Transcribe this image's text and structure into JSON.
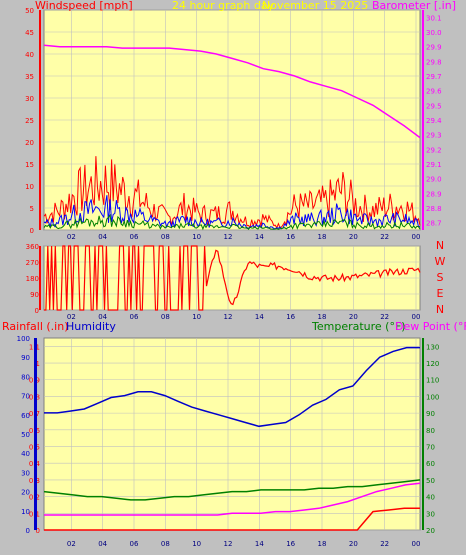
{
  "header": {
    "windspeed_label": "Windspeed [mph]",
    "title": "24 hour graph day",
    "date": "November 15 2025",
    "barometer_label": "Barometer [.in]"
  },
  "colors": {
    "background": "#c0c0c0",
    "plot_bg": "#ffffa8",
    "grid": "#c0c0c0",
    "wind_avg": "#ff0000",
    "wind_mid": "#0000ff",
    "wind_low": "#008000",
    "barometer": "#ff00ff",
    "direction": "#ff0000",
    "humidity": "#0000cc",
    "temperature": "#008000",
    "dewpoint": "#ff00ff",
    "rainfall": "#ff0000"
  },
  "chart_data": [
    {
      "type": "line",
      "name": "wind-barometer",
      "title": "24 hour graph day",
      "x_ticks": [
        "02",
        "04",
        "06",
        "08",
        "10",
        "12",
        "14",
        "16",
        "18",
        "20",
        "22",
        "00"
      ],
      "y_left_label": "Windspeed [mph]",
      "y_left_ticks": [
        "0",
        "5",
        "10",
        "15",
        "20",
        "25",
        "30",
        "35",
        "40",
        "45",
        "50"
      ],
      "ylim_left": [
        0,
        50
      ],
      "y_right_label": "Barometer [.in]",
      "y_right_ticks": [
        "28.7",
        "28.8",
        "28.9",
        "29.0",
        "29.1",
        "29.2",
        "29.3",
        "29.4",
        "29.5",
        "29.6",
        "29.7",
        "29.8",
        "29.9",
        "30.0",
        "30.1"
      ],
      "ylim_right": [
        28.65,
        30.15
      ],
      "grid": true,
      "series": [
        {
          "name": "Windspeed",
          "values": [
            3.5,
            5,
            9,
            11,
            12,
            10,
            8,
            5,
            3,
            6,
            4,
            4,
            5,
            2,
            3,
            1,
            6,
            6,
            7,
            10,
            6,
            5,
            6,
            6,
            3
          ]
        },
        {
          "name": "Barometer",
          "values": [
            29.91,
            29.9,
            29.9,
            29.9,
            29.9,
            29.89,
            29.89,
            29.89,
            29.89,
            29.88,
            29.87,
            29.85,
            29.82,
            29.79,
            29.75,
            29.73,
            29.7,
            29.66,
            29.63,
            29.6,
            29.55,
            29.5,
            29.43,
            29.36,
            29.28
          ]
        }
      ]
    },
    {
      "type": "line",
      "name": "wind-direction",
      "x_ticks": [
        "02",
        "04",
        "06",
        "08",
        "10",
        "12",
        "14",
        "16",
        "18",
        "20",
        "22",
        "00"
      ],
      "y_left_ticks": [
        "360",
        "270",
        "180",
        "90",
        "0"
      ],
      "ylim": [
        0,
        360
      ],
      "compass_labels": [
        "N",
        "W",
        "S",
        "E",
        "N"
      ],
      "values": [
        360,
        360,
        0,
        360,
        0,
        360,
        0,
        360,
        0,
        360,
        0,
        360,
        0,
        270,
        240,
        250,
        230,
        190,
        180,
        180,
        190,
        200,
        210,
        220,
        230
      ]
    },
    {
      "type": "line",
      "name": "temp-humidity-rain",
      "x_ticks": [
        "02",
        "04",
        "06",
        "08",
        "10",
        "12",
        "14",
        "16",
        "18",
        "20",
        "22",
        "00"
      ],
      "rain_label": "Rainfall (.in)",
      "humidity_label": "Humidity",
      "temperature_label": "Temperature (°F)",
      "dewpoint_label": "Dew Point (°F)",
      "humidity_ticks": [
        "0",
        "10",
        "20",
        "30",
        "40",
        "50",
        "60",
        "70",
        "80",
        "90",
        "100"
      ],
      "rain_ticks": [
        "0",
        "0.1",
        "0.2",
        "0.3",
        "0.4",
        "0.5",
        "0.6",
        "0.7",
        "0.8",
        "0.9",
        "1",
        "1.1"
      ],
      "temp_ticks": [
        "20",
        "30",
        "40",
        "50",
        "60",
        "70",
        "80",
        "90",
        "100",
        "110",
        "120",
        "130"
      ],
      "ylim_humidity": [
        0,
        100
      ],
      "ylim_rain": [
        0,
        1.15
      ],
      "ylim_temp": [
        20,
        135
      ],
      "series": [
        {
          "name": "Humidity",
          "values": [
            61,
            61,
            62,
            63,
            66,
            69,
            70,
            72,
            72,
            70,
            67,
            64,
            62,
            60,
            58,
            56,
            54,
            55,
            56,
            60,
            65,
            68,
            73,
            75,
            83,
            90,
            93,
            95,
            95
          ]
        },
        {
          "name": "Temperature",
          "values": [
            43,
            42,
            41,
            40,
            40,
            39,
            38,
            38,
            39,
            40,
            40,
            41,
            42,
            43,
            43,
            44,
            44,
            44,
            44,
            45,
            45,
            46,
            46,
            47,
            48,
            49,
            50
          ]
        },
        {
          "name": "Dew Point",
          "values": [
            29,
            29,
            29,
            29,
            29,
            29,
            29,
            29,
            29,
            29,
            29,
            29,
            29,
            30,
            30,
            30,
            31,
            31,
            32,
            33,
            35,
            37,
            40,
            43,
            45,
            47,
            48
          ]
        },
        {
          "name": "Rainfall",
          "values": [
            0,
            0,
            0,
            0,
            0,
            0,
            0,
            0,
            0,
            0,
            0,
            0,
            0,
            0,
            0,
            0,
            0,
            0,
            0,
            0,
            0,
            0.11,
            0.12,
            0.13,
            0.13
          ]
        }
      ]
    }
  ]
}
